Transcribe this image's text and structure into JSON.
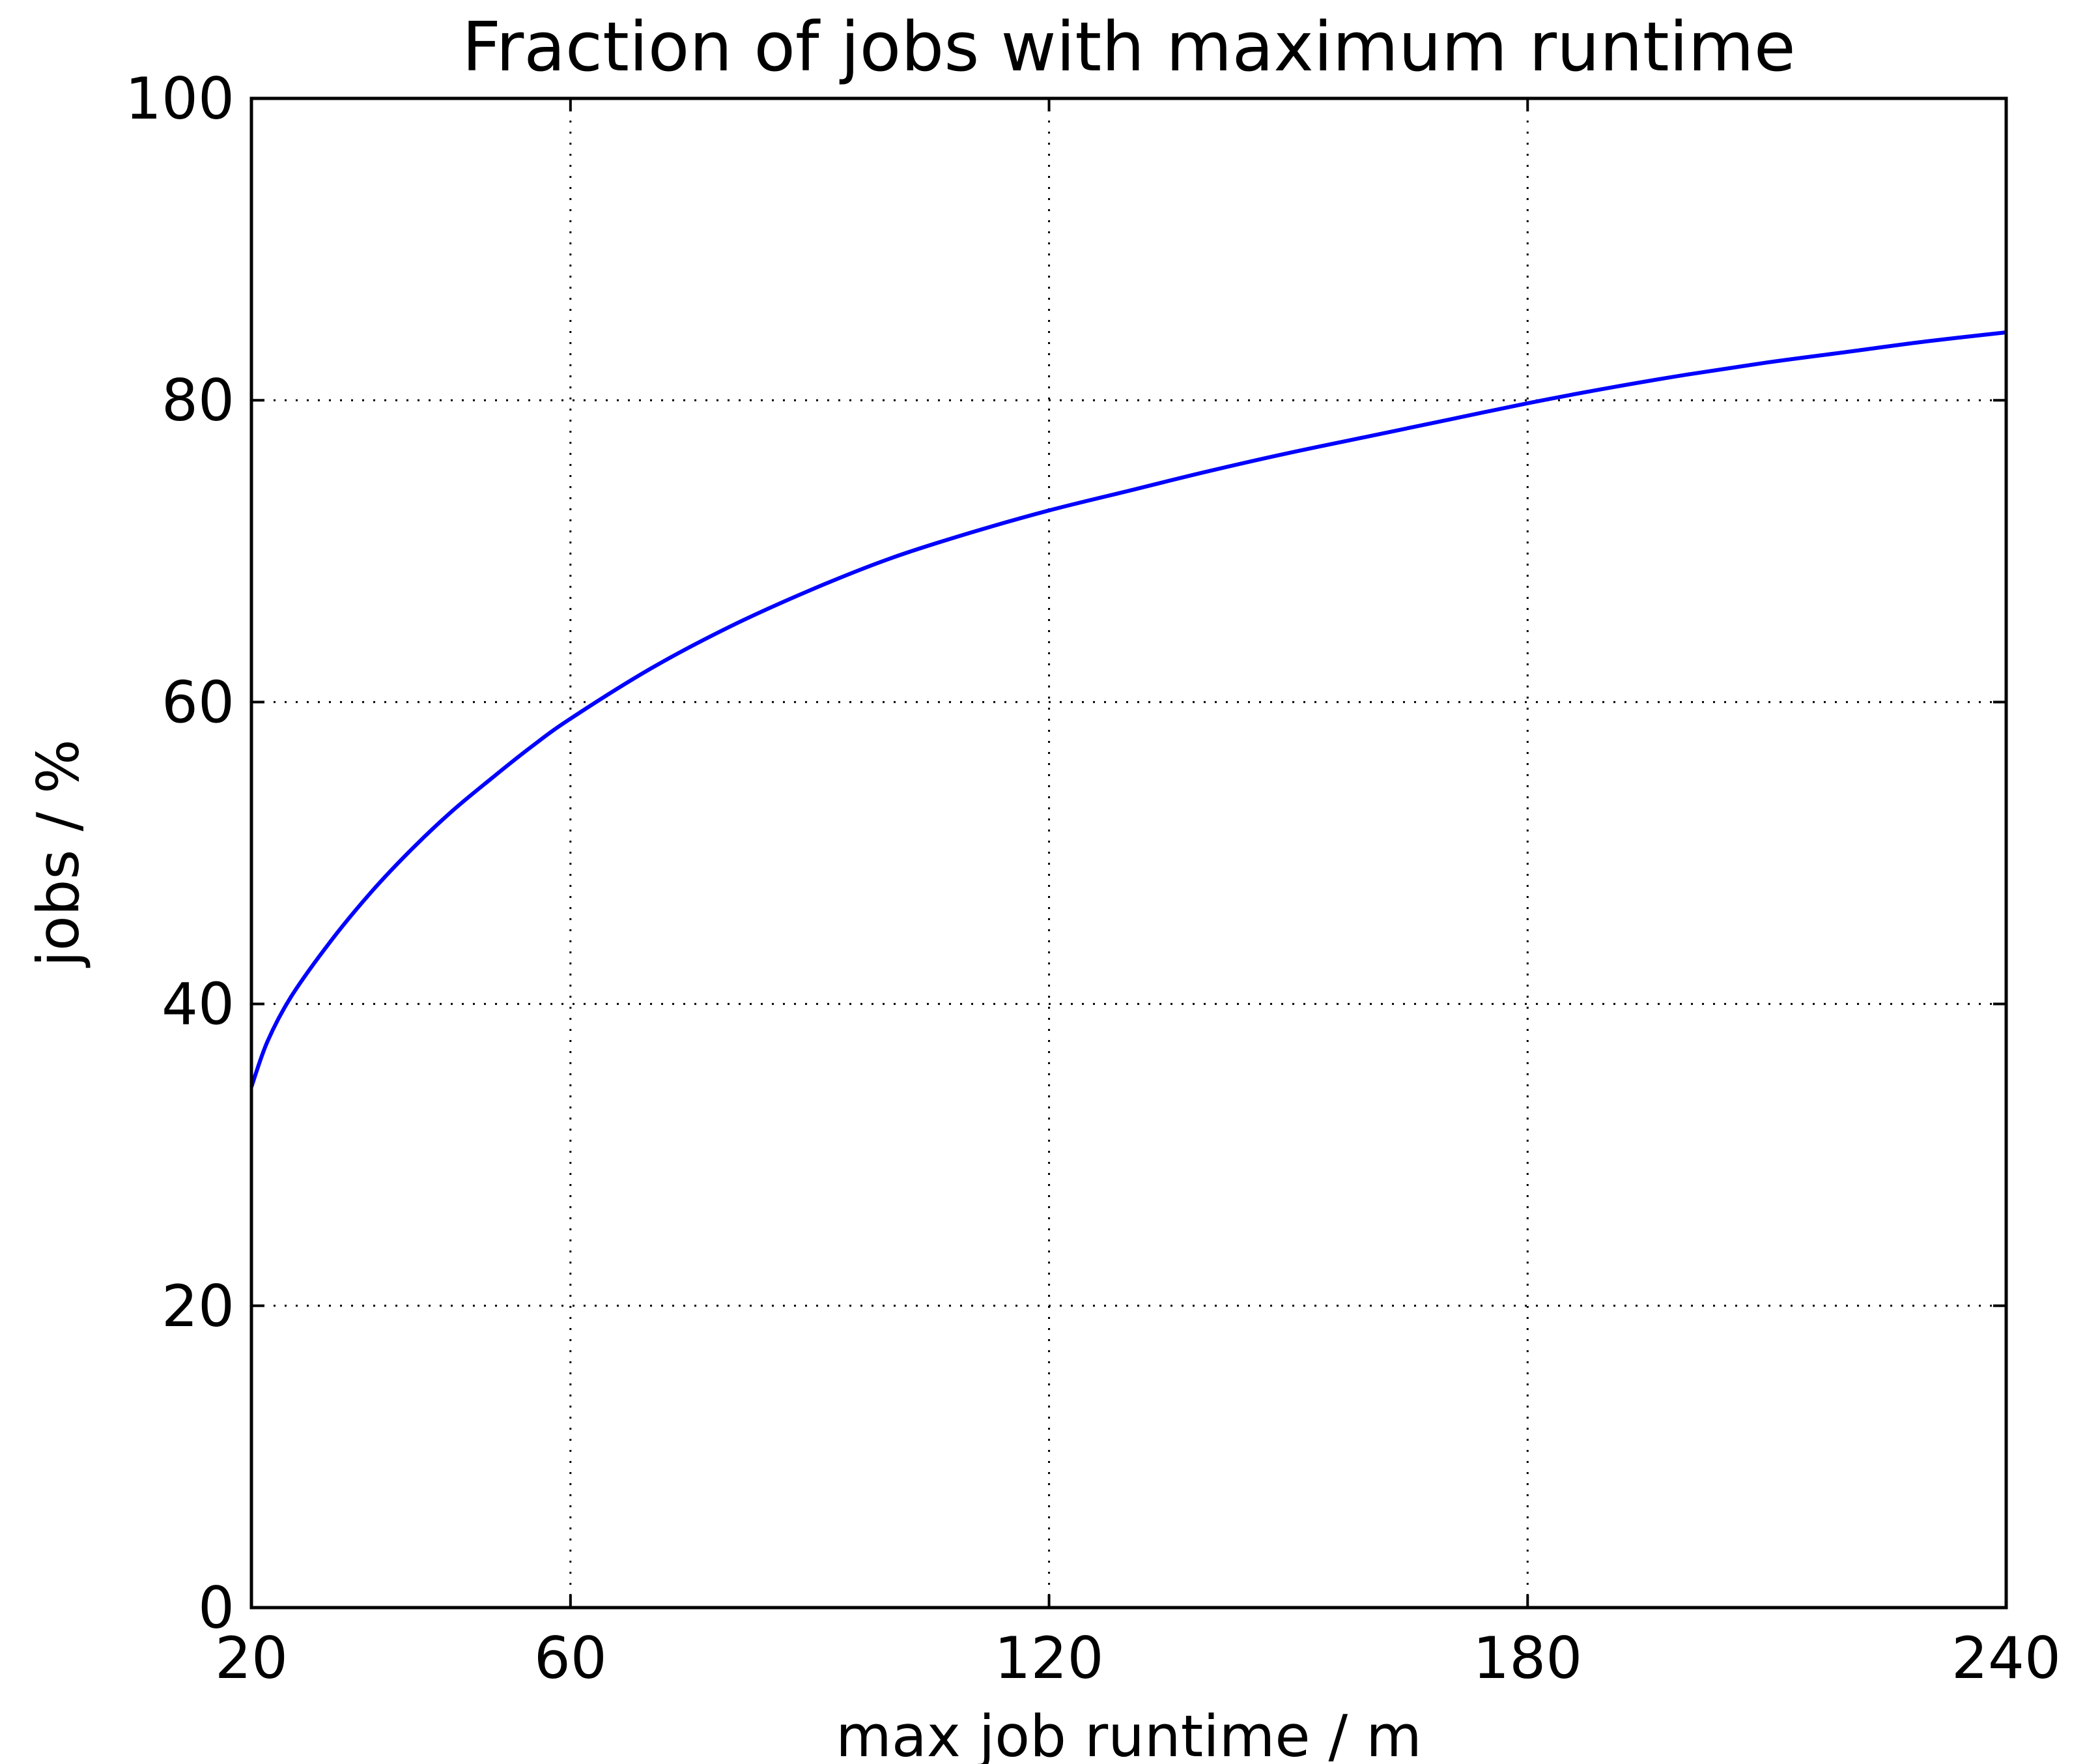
{
  "chart_data": {
    "type": "line",
    "title": "Fraction of jobs with maximum runtime",
    "xlabel": "max job runtime / m",
    "ylabel": "jobs / %",
    "xlim": [
      20,
      240
    ],
    "ylim": [
      0,
      100
    ],
    "xticks": [
      20,
      60,
      120,
      180,
      240
    ],
    "yticks": [
      0,
      20,
      40,
      60,
      80,
      100
    ],
    "grid": true,
    "legend": "none",
    "series": [
      {
        "color": "#0000ff",
        "x": [
          20,
          22,
          25,
          30,
          35,
          40,
          45,
          50,
          55,
          60,
          70,
          80,
          90,
          100,
          110,
          120,
          130,
          140,
          150,
          160,
          170,
          180,
          190,
          200,
          210,
          220,
          230,
          240
        ],
        "y": [
          34.5,
          37.5,
          40.5,
          44.2,
          47.4,
          50.2,
          52.7,
          54.9,
          57.0,
          58.9,
          62.2,
          65.0,
          67.4,
          69.5,
          71.2,
          72.7,
          74.0,
          75.3,
          76.5,
          77.6,
          78.7,
          79.8,
          80.8,
          81.7,
          82.5,
          83.2,
          83.9,
          84.5
        ]
      }
    ]
  }
}
